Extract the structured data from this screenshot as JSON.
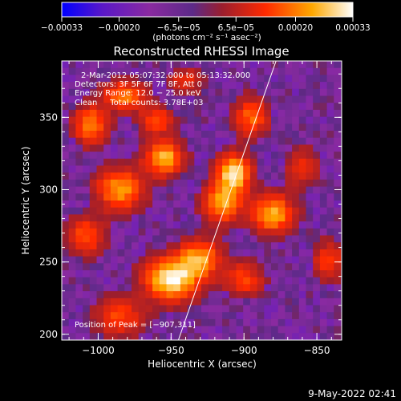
{
  "chart_data": {
    "type": "heatmap",
    "title": "Reconstructed RHESSI Image",
    "xlabel": "Heliocentric X (arcsec)",
    "ylabel": "Heliocentric Y (arcsec)",
    "xlim": [
      -1025,
      -833
    ],
    "ylim": [
      196,
      389
    ],
    "x_ticks": [
      {
        "value": -1000,
        "label": "−1000"
      },
      {
        "value": -950,
        "label": "−950"
      },
      {
        "value": -900,
        "label": "−900"
      },
      {
        "value": -850,
        "label": "−850"
      }
    ],
    "y_ticks": [
      {
        "value": 200,
        "label": "200"
      },
      {
        "value": 250,
        "label": "250"
      },
      {
        "value": 300,
        "label": "300"
      },
      {
        "value": 350,
        "label": "350"
      }
    ],
    "colorbar": {
      "range": [
        -0.00033,
        0.00033
      ],
      "tick_values": [
        -0.00033,
        -0.0002,
        -6.5e-05,
        6.5e-05,
        0.0002,
        0.00033
      ],
      "tick_labels": [
        "−0.00033",
        "−0.00020",
        "−6.5e−05",
        "6.5e−05",
        "0.00020",
        "0.00033"
      ],
      "unit_label": "(photons cm⁻² s⁻¹ asec⁻²)",
      "colors": [
        "#0000ff",
        "#5a18c8",
        "#8a2aa0",
        "#5c2a88",
        "#9a1e2e",
        "#ff2a00",
        "#ffa800",
        "#ffffff"
      ]
    },
    "annotations": {
      "time_range": "2-Mar-2012 05:07:32.000 to 05:13:32.000",
      "detectors": "Detectors: 3F 5F 6F 7F 8F, Att 0",
      "energy": "Energy Range: 12.0 − 25.0 keV",
      "clean": "Clean     Total counts: 3.78E+03",
      "peak": "Position of Peak = [−907,311]"
    },
    "peak": [
      -907,
      311
    ],
    "limb_line": [
      [
        -945,
        196
      ],
      [
        -878,
        389
      ]
    ],
    "sources": [
      {
        "x": -950,
        "y": 238,
        "sx": 12,
        "sy": 10,
        "amp": 1.0
      },
      {
        "x": -930,
        "y": 252,
        "sx": 10,
        "sy": 9,
        "amp": 0.7
      },
      {
        "x": -907,
        "y": 311,
        "sx": 8,
        "sy": 9,
        "amp": 0.95
      },
      {
        "x": -915,
        "y": 290,
        "sx": 9,
        "sy": 9,
        "amp": 0.7
      },
      {
        "x": -955,
        "y": 322,
        "sx": 9,
        "sy": 8,
        "amp": 0.8
      },
      {
        "x": -985,
        "y": 300,
        "sx": 11,
        "sy": 10,
        "amp": 0.7
      },
      {
        "x": -1005,
        "y": 345,
        "sx": 8,
        "sy": 9,
        "amp": 0.65
      },
      {
        "x": -982,
        "y": 365,
        "sx": 10,
        "sy": 7,
        "amp": 0.6
      },
      {
        "x": -960,
        "y": 348,
        "sx": 8,
        "sy": 6,
        "amp": 0.5
      },
      {
        "x": -880,
        "y": 283,
        "sx": 10,
        "sy": 9,
        "amp": 0.75
      },
      {
        "x": -895,
        "y": 350,
        "sx": 8,
        "sy": 9,
        "amp": 0.55
      },
      {
        "x": -1008,
        "y": 268,
        "sx": 9,
        "sy": 9,
        "amp": 0.5
      },
      {
        "x": -985,
        "y": 212,
        "sx": 12,
        "sy": 9,
        "amp": 0.45
      },
      {
        "x": -900,
        "y": 238,
        "sx": 9,
        "sy": 8,
        "amp": 0.45
      },
      {
        "x": -842,
        "y": 250,
        "sx": 7,
        "sy": 9,
        "amp": 0.45
      },
      {
        "x": -860,
        "y": 315,
        "sx": 8,
        "sy": 9,
        "amp": 0.35
      },
      {
        "x": -940,
        "y": 375,
        "sx": 8,
        "sy": 6,
        "amp": 0.35
      }
    ],
    "grid": false
  },
  "footer": {
    "date": "9-May-2022 02:41"
  }
}
